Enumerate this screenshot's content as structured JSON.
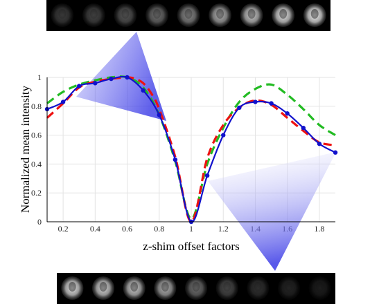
{
  "chart_data": {
    "type": "line",
    "xlabel": "z-shim offset factors",
    "ylabel": "Normalized mean intensity",
    "xlim": [
      0.1,
      1.9
    ],
    "ylim": [
      0,
      1
    ],
    "x_ticks": [
      "0.2",
      "0.4",
      "0.6",
      "0.8",
      "1",
      "1.2",
      "1.4",
      "1.6",
      "1.8"
    ],
    "y_ticks": [
      "0",
      "0.2",
      "0.4",
      "0.6",
      "0.8",
      "1"
    ],
    "grid": true,
    "series": [
      {
        "color": "#1111cc",
        "style": "solid-markers",
        "x": [
          0.1,
          0.2,
          0.3,
          0.4,
          0.5,
          0.6,
          0.7,
          0.8,
          0.9,
          1.0,
          1.1,
          1.2,
          1.3,
          1.4,
          1.5,
          1.6,
          1.7,
          1.8,
          1.9
        ],
        "y": [
          0.78,
          0.83,
          0.94,
          0.96,
          0.99,
          1.0,
          0.91,
          0.74,
          0.43,
          0.0,
          0.32,
          0.6,
          0.79,
          0.83,
          0.82,
          0.75,
          0.65,
          0.54,
          0.48
        ]
      },
      {
        "color": "#ee1111",
        "style": "dashed",
        "x": [
          0.1,
          0.2,
          0.3,
          0.4,
          0.5,
          0.6,
          0.65,
          0.7,
          0.75,
          0.8,
          0.9,
          1.0,
          1.1,
          1.2,
          1.3,
          1.4,
          1.5,
          1.6,
          1.7,
          1.8,
          1.9
        ],
        "y": [
          0.72,
          0.82,
          0.93,
          0.97,
          0.99,
          1.0,
          0.99,
          0.96,
          0.89,
          0.78,
          0.45,
          0.0,
          0.44,
          0.67,
          0.79,
          0.84,
          0.81,
          0.72,
          0.63,
          0.55,
          0.53
        ]
      },
      {
        "color": "#22bb22",
        "style": "dashed",
        "x": [
          0.1,
          0.2,
          0.3,
          0.4,
          0.5,
          0.6,
          0.7,
          0.8,
          0.9,
          1.0,
          1.1,
          1.2,
          1.3,
          1.4,
          1.5,
          1.6,
          1.7,
          1.8,
          1.9
        ],
        "y": [
          0.82,
          0.9,
          0.95,
          0.98,
          1.0,
          1.0,
          0.93,
          0.74,
          0.42,
          0.02,
          0.4,
          0.65,
          0.83,
          0.92,
          0.95,
          0.88,
          0.78,
          0.67,
          0.6
        ]
      }
    ]
  }
}
